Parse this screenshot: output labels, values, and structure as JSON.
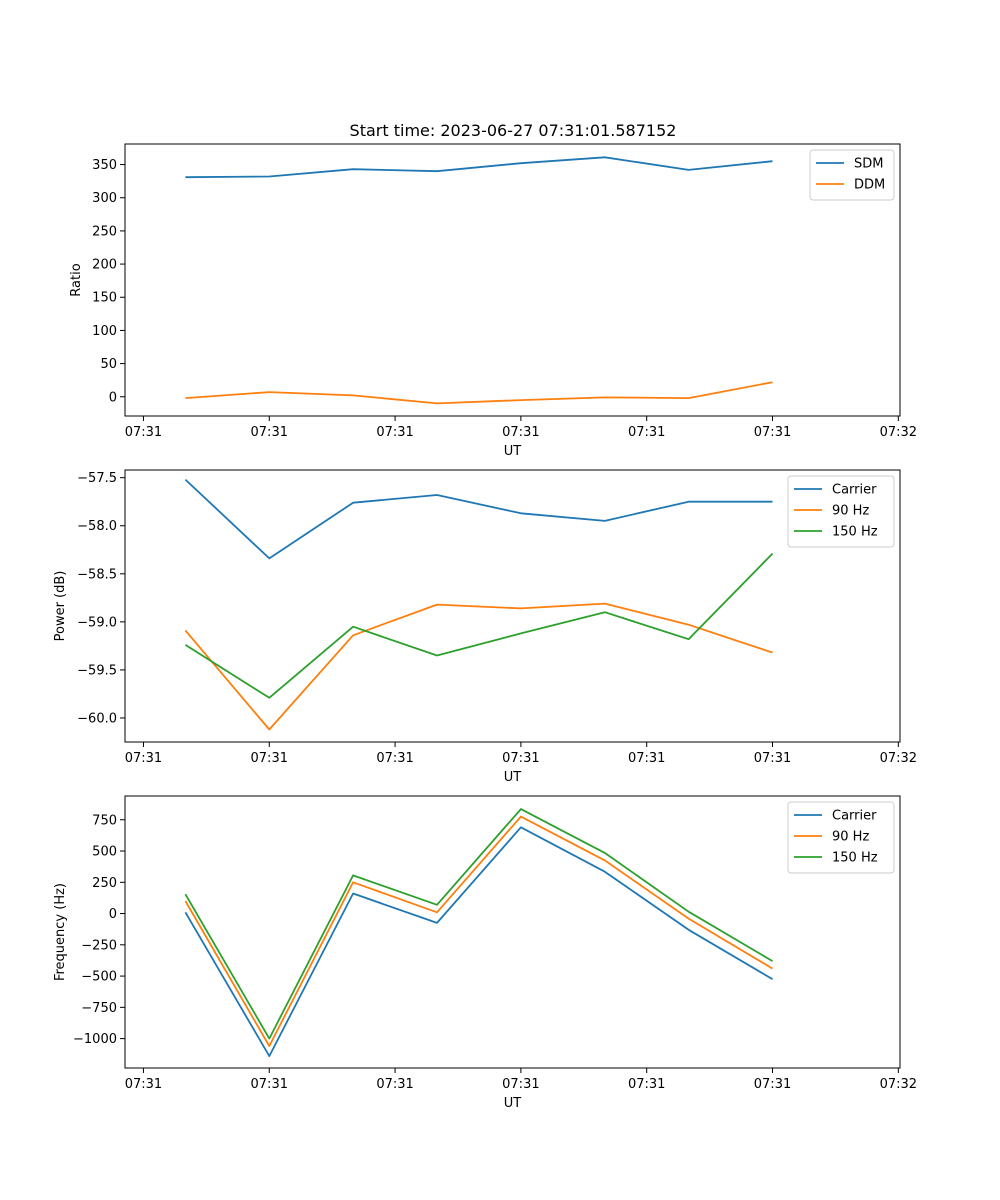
{
  "figure_title": "Start time: 2023-06-27 07:31:01.587152",
  "chart_data": [
    {
      "type": "line",
      "title": "Start time: 2023-06-27 07:31:01.587152",
      "xlabel": "UT",
      "ylabel": "Ratio",
      "x": [
        0,
        1,
        2,
        3,
        4,
        5,
        6,
        7
      ],
      "xlim": [
        -0.72,
        8.52
      ],
      "x_ticks": [
        -0.5,
        1,
        2.5,
        4,
        5.5,
        7,
        8.5
      ],
      "x_tick_labels": [
        "07:31",
        "07:31",
        "07:31",
        "07:31",
        "07:31",
        "07:31",
        "07:32"
      ],
      "ylim": [
        -29,
        381
      ],
      "y_ticks": [
        0,
        50,
        100,
        150,
        200,
        250,
        300,
        350
      ],
      "y_tick_labels": [
        "0",
        "50",
        "100",
        "150",
        "200",
        "250",
        "300",
        "350"
      ],
      "legend": "top-right",
      "series": [
        {
          "name": "SDM",
          "color": "#1f77b4",
          "values": [
            331,
            332,
            343,
            340,
            352,
            361,
            342,
            355
          ]
        },
        {
          "name": "DDM",
          "color": "#ff7f0e",
          "values": [
            -2,
            7,
            2,
            -10,
            -5,
            -1,
            -2,
            22
          ]
        }
      ]
    },
    {
      "type": "line",
      "xlabel": "UT",
      "ylabel": "Power (dB)",
      "x": [
        0,
        1,
        2,
        3,
        4,
        5,
        6,
        7
      ],
      "xlim": [
        -0.72,
        8.52
      ],
      "x_ticks": [
        -0.5,
        1,
        2.5,
        4,
        5.5,
        7,
        8.5
      ],
      "x_tick_labels": [
        "07:31",
        "07:31",
        "07:31",
        "07:31",
        "07:31",
        "07:31",
        "07:32"
      ],
      "ylim": [
        -60.25,
        -57.42
      ],
      "y_ticks": [
        -60.0,
        -59.5,
        -59.0,
        -58.5,
        -58.0,
        -57.5
      ],
      "y_tick_labels": [
        "−60.0",
        "−59.5",
        "−59.0",
        "−58.5",
        "−58.0",
        "−57.5"
      ],
      "legend": "top-right",
      "series": [
        {
          "name": "Carrier",
          "color": "#1f77b4",
          "values": [
            -57.52,
            -58.34,
            -57.76,
            -57.68,
            -57.87,
            -57.95,
            -57.75,
            -57.75
          ]
        },
        {
          "name": "90 Hz",
          "color": "#ff7f0e",
          "values": [
            -59.09,
            -60.12,
            -59.14,
            -58.82,
            -58.86,
            -58.81,
            -59.03,
            -59.32
          ]
        },
        {
          "name": "150 Hz",
          "color": "#2ca02c",
          "values": [
            -59.24,
            -59.79,
            -59.05,
            -59.35,
            -59.12,
            -58.9,
            -59.18,
            -58.29
          ]
        }
      ]
    },
    {
      "type": "line",
      "xlabel": "UT",
      "ylabel": "Frequency (Hz)",
      "x": [
        0,
        1,
        2,
        3,
        4,
        5,
        6,
        7
      ],
      "xlim": [
        -0.72,
        8.52
      ],
      "x_ticks": [
        -0.5,
        1,
        2.5,
        4,
        5.5,
        7,
        8.5
      ],
      "x_tick_labels": [
        "07:31",
        "07:31",
        "07:31",
        "07:31",
        "07:31",
        "07:31",
        "07:32"
      ],
      "ylim": [
        -1235,
        940
      ],
      "y_ticks": [
        -1000,
        -750,
        -500,
        -250,
        0,
        250,
        500,
        750
      ],
      "y_tick_labels": [
        "−1000",
        "−750",
        "−500",
        "−250",
        "0",
        "250",
        "500",
        "750"
      ],
      "legend": "top-right",
      "series": [
        {
          "name": "Carrier",
          "color": "#1f77b4",
          "values": [
            10,
            -1140,
            160,
            -75,
            690,
            335,
            -130,
            -525
          ]
        },
        {
          "name": "90 Hz",
          "color": "#ff7f0e",
          "values": [
            100,
            -1060,
            250,
            10,
            775,
            425,
            -40,
            -440
          ]
        },
        {
          "name": "150 Hz",
          "color": "#2ca02c",
          "values": [
            155,
            -1000,
            305,
            70,
            835,
            485,
            15,
            -380
          ]
        }
      ]
    }
  ]
}
